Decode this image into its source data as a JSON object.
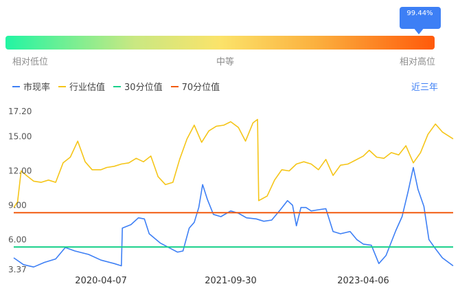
{
  "indicator": {
    "percentile_label": "99.44%",
    "percentile": 0.9944,
    "scale_labels": {
      "low": "相对低位",
      "mid": "中等",
      "high": "相对高位"
    }
  },
  "legend": {
    "items": [
      {
        "label": "市现率",
        "color": "#3d7ff5"
      },
      {
        "label": "行业估值",
        "color": "#f5c518"
      },
      {
        "label": "30分位值",
        "color": "#18d08a"
      },
      {
        "label": "70分位值",
        "color": "#f25a0f"
      }
    ],
    "range_label": "近三年"
  },
  "chart_data": {
    "type": "line",
    "title": "",
    "xlabel": "",
    "ylabel": "",
    "x_range": [
      "2019-04-09",
      "2024-04-15"
    ],
    "ylim": [
      3.37,
      17.2
    ],
    "y_ticks": [
      "3.37",
      "6.00",
      "9.00",
      "12.00",
      "15.00",
      "17.20"
    ],
    "x_ticks": [
      "2020-04-07",
      "2021-09-30",
      "2023-04-06"
    ],
    "grid": false,
    "legend_position": "top-left",
    "series": [
      {
        "name": "市现率",
        "color": "#3d7ff5",
        "points": [
          [
            "2019-04-09",
            4.4
          ],
          [
            "2019-05-20",
            3.8
          ],
          [
            "2019-07-01",
            3.6
          ],
          [
            "2019-08-15",
            4.0
          ],
          [
            "2019-10-01",
            4.3
          ],
          [
            "2019-11-10",
            5.3
          ],
          [
            "2019-12-20",
            5.0
          ],
          [
            "2020-02-15",
            4.7
          ],
          [
            "2020-04-07",
            4.2
          ],
          [
            "2020-06-01",
            3.9
          ],
          [
            "2020-07-01",
            3.7
          ],
          [
            "2020-07-05",
            7.0
          ],
          [
            "2020-08-10",
            7.3
          ],
          [
            "2020-09-10",
            7.9
          ],
          [
            "2020-10-05",
            7.8
          ],
          [
            "2020-10-25",
            6.5
          ],
          [
            "2020-12-10",
            5.7
          ],
          [
            "2021-01-15",
            5.3
          ],
          [
            "2021-02-20",
            4.9
          ],
          [
            "2021-03-15",
            5.0
          ],
          [
            "2021-04-10",
            7.0
          ],
          [
            "2021-05-01",
            7.5
          ],
          [
            "2021-05-20",
            8.8
          ],
          [
            "2021-06-05",
            10.8
          ],
          [
            "2021-06-25",
            9.5
          ],
          [
            "2021-07-20",
            8.2
          ],
          [
            "2021-08-20",
            8.0
          ],
          [
            "2021-09-30",
            8.5
          ],
          [
            "2021-11-01",
            8.3
          ],
          [
            "2021-12-05",
            7.9
          ],
          [
            "2022-01-15",
            7.8
          ],
          [
            "2022-02-15",
            7.6
          ],
          [
            "2022-03-20",
            7.7
          ],
          [
            "2022-04-25",
            8.6
          ],
          [
            "2022-05-25",
            9.4
          ],
          [
            "2022-06-15",
            9.0
          ],
          [
            "2022-07-01",
            7.2
          ],
          [
            "2022-07-20",
            8.8
          ],
          [
            "2022-08-10",
            8.8
          ],
          [
            "2022-09-01",
            8.5
          ],
          [
            "2022-10-01",
            8.6
          ],
          [
            "2022-11-01",
            8.7
          ],
          [
            "2022-12-01",
            6.7
          ],
          [
            "2023-01-01",
            6.5
          ],
          [
            "2023-02-10",
            6.7
          ],
          [
            "2023-03-10",
            6.0
          ],
          [
            "2023-04-06",
            5.6
          ],
          [
            "2023-05-10",
            5.5
          ],
          [
            "2023-06-10",
            3.9
          ],
          [
            "2023-07-10",
            4.6
          ],
          [
            "2023-08-20",
            6.8
          ],
          [
            "2023-09-15",
            8.0
          ],
          [
            "2023-10-10",
            10.2
          ],
          [
            "2023-11-01",
            12.3
          ],
          [
            "2023-11-20",
            10.4
          ],
          [
            "2023-12-15",
            8.9
          ],
          [
            "2024-01-05",
            6.0
          ],
          [
            "2024-02-01",
            5.2
          ],
          [
            "2024-03-01",
            4.4
          ],
          [
            "2024-04-15",
            3.7
          ]
        ]
      },
      {
        "name": "行业估值",
        "color": "#f5c518",
        "points": [
          [
            "2019-04-09",
            8.8
          ],
          [
            "2019-04-25",
            9.3
          ],
          [
            "2019-05-10",
            12.0
          ],
          [
            "2019-06-01",
            11.6
          ],
          [
            "2019-07-01",
            11.1
          ],
          [
            "2019-08-01",
            11.0
          ],
          [
            "2019-09-01",
            11.2
          ],
          [
            "2019-10-01",
            11.0
          ],
          [
            "2019-11-01",
            12.7
          ],
          [
            "2019-12-01",
            13.2
          ],
          [
            "2020-01-01",
            14.6
          ],
          [
            "2020-02-01",
            12.8
          ],
          [
            "2020-03-01",
            12.1
          ],
          [
            "2020-04-07",
            12.1
          ],
          [
            "2020-05-01",
            12.3
          ],
          [
            "2020-06-01",
            12.4
          ],
          [
            "2020-07-01",
            12.6
          ],
          [
            "2020-08-01",
            12.7
          ],
          [
            "2020-09-01",
            13.1
          ],
          [
            "2020-10-01",
            12.8
          ],
          [
            "2020-11-01",
            13.3
          ],
          [
            "2020-12-01",
            11.5
          ],
          [
            "2021-01-01",
            10.8
          ],
          [
            "2021-02-01",
            11.0
          ],
          [
            "2021-03-01",
            13.0
          ],
          [
            "2021-04-01",
            14.8
          ],
          [
            "2021-05-01",
            16.0
          ],
          [
            "2021-06-01",
            14.5
          ],
          [
            "2021-07-01",
            15.5
          ],
          [
            "2021-08-01",
            15.9
          ],
          [
            "2021-09-01",
            16.0
          ],
          [
            "2021-09-30",
            16.3
          ],
          [
            "2021-11-01",
            15.8
          ],
          [
            "2021-12-01",
            14.6
          ],
          [
            "2022-01-01",
            16.2
          ],
          [
            "2022-01-20",
            16.5
          ],
          [
            "2022-01-25",
            9.4
          ],
          [
            "2022-03-01",
            9.8
          ],
          [
            "2022-04-01",
            11.2
          ],
          [
            "2022-05-01",
            12.1
          ],
          [
            "2022-06-01",
            12.0
          ],
          [
            "2022-07-01",
            12.6
          ],
          [
            "2022-08-01",
            12.8
          ],
          [
            "2022-09-01",
            12.6
          ],
          [
            "2022-10-01",
            12.1
          ],
          [
            "2022-11-01",
            13.0
          ],
          [
            "2022-12-01",
            11.6
          ],
          [
            "2023-01-01",
            12.5
          ],
          [
            "2023-02-01",
            12.6
          ],
          [
            "2023-03-01",
            12.9
          ],
          [
            "2023-04-06",
            13.3
          ],
          [
            "2023-05-01",
            13.8
          ],
          [
            "2023-06-01",
            13.2
          ],
          [
            "2023-07-01",
            13.1
          ],
          [
            "2023-08-01",
            13.6
          ],
          [
            "2023-09-01",
            13.4
          ],
          [
            "2023-10-01",
            14.2
          ],
          [
            "2023-11-01",
            12.7
          ],
          [
            "2023-12-01",
            13.6
          ],
          [
            "2024-01-01",
            15.2
          ],
          [
            "2024-02-01",
            16.1
          ],
          [
            "2024-03-01",
            15.4
          ],
          [
            "2024-04-15",
            14.8
          ]
        ]
      },
      {
        "name": "30分位值",
        "color": "#18d08a",
        "points": [
          [
            "2019-04-09",
            5.35
          ],
          [
            "2024-04-15",
            5.35
          ]
        ]
      },
      {
        "name": "70分位值",
        "color": "#f25a0f",
        "points": [
          [
            "2019-04-09",
            8.35
          ],
          [
            "2024-04-15",
            8.35
          ]
        ]
      }
    ]
  }
}
